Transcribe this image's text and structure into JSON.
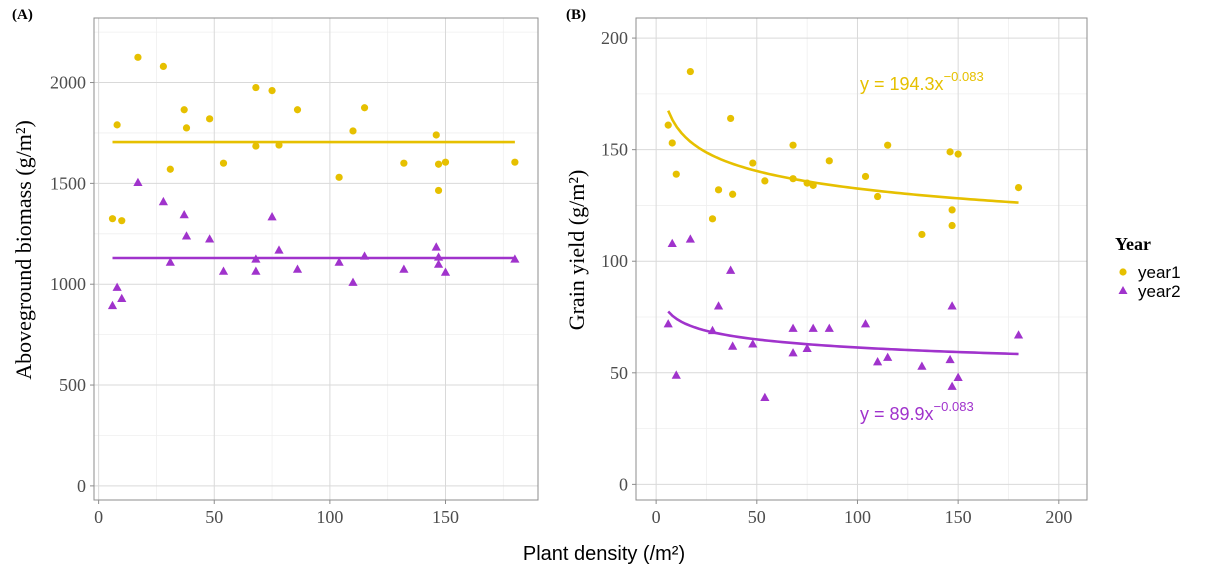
{
  "colors": {
    "year1": "#E6C000",
    "year2": "#A033CC",
    "grid_major": "#d9d9d9",
    "grid_minor": "#efefef",
    "axis_text": "#4d4d4d",
    "border": "#8c8c8c"
  },
  "legend": {
    "title": "Year",
    "entries": [
      "year1",
      "year2"
    ]
  },
  "shared_xlabel": "Plant density (/m²)",
  "chart_data": [
    {
      "panel_label": "(A)",
      "type": "scatter",
      "xlabel": "",
      "ylabel": "Aboveground biomass (g/m²)",
      "xlim": [
        -2,
        190
      ],
      "ylim": [
        -70,
        2320
      ],
      "xticks": [
        0,
        50,
        100,
        150
      ],
      "yticks": [
        0,
        500,
        1000,
        1500,
        2000
      ],
      "grid": true,
      "series": [
        {
          "name": "year1",
          "marker": "circle",
          "points": [
            [
              6,
              1325
            ],
            [
              8,
              1790
            ],
            [
              10,
              1315
            ],
            [
              17,
              2125
            ],
            [
              28,
              2080
            ],
            [
              31,
              1570
            ],
            [
              37,
              1865
            ],
            [
              38,
              1775
            ],
            [
              48,
              1820
            ],
            [
              54,
              1600
            ],
            [
              68,
              1975
            ],
            [
              68,
              1685
            ],
            [
              75,
              1960
            ],
            [
              78,
              1690
            ],
            [
              86,
              1865
            ],
            [
              104,
              1530
            ],
            [
              110,
              1760
            ],
            [
              115,
              1875
            ],
            [
              132,
              1600
            ],
            [
              146,
              1740
            ],
            [
              147,
              1595
            ],
            [
              147,
              1465
            ],
            [
              150,
              1605
            ],
            [
              180,
              1605
            ]
          ],
          "fit": {
            "kind": "constant",
            "value": 1705,
            "x_range": [
              6,
              180
            ]
          }
        },
        {
          "name": "year2",
          "marker": "triangle",
          "points": [
            [
              6,
              895
            ],
            [
              8,
              985
            ],
            [
              10,
              930
            ],
            [
              17,
              1505
            ],
            [
              28,
              1410
            ],
            [
              31,
              1110
            ],
            [
              37,
              1345
            ],
            [
              38,
              1240
            ],
            [
              48,
              1225
            ],
            [
              54,
              1065
            ],
            [
              68,
              1125
            ],
            [
              68,
              1065
            ],
            [
              75,
              1335
            ],
            [
              78,
              1170
            ],
            [
              86,
              1075
            ],
            [
              104,
              1110
            ],
            [
              110,
              1010
            ],
            [
              115,
              1140
            ],
            [
              132,
              1075
            ],
            [
              146,
              1185
            ],
            [
              147,
              1135
            ],
            [
              147,
              1100
            ],
            [
              150,
              1060
            ],
            [
              180,
              1125
            ]
          ],
          "fit": {
            "kind": "constant",
            "value": 1130,
            "x_range": [
              6,
              180
            ]
          }
        }
      ]
    },
    {
      "panel_label": "(B)",
      "type": "scatter",
      "xlabel": "",
      "ylabel": "Grain yield (g/m²)",
      "xlim": [
        -10,
        214
      ],
      "ylim": [
        -7,
        209
      ],
      "xticks": [
        0,
        50,
        100,
        150,
        200
      ],
      "yticks": [
        0,
        50,
        100,
        150,
        200
      ],
      "grid": true,
      "series": [
        {
          "name": "year1",
          "marker": "circle",
          "points": [
            [
              6,
              161
            ],
            [
              8,
              153
            ],
            [
              10,
              139
            ],
            [
              17,
              185
            ],
            [
              28,
              119
            ],
            [
              31,
              132
            ],
            [
              37,
              164
            ],
            [
              38,
              130
            ],
            [
              48,
              144
            ],
            [
              54,
              136
            ],
            [
              68,
              152
            ],
            [
              68,
              137
            ],
            [
              75,
              135
            ],
            [
              78,
              134
            ],
            [
              86,
              145
            ],
            [
              104,
              138
            ],
            [
              110,
              129
            ],
            [
              115,
              152
            ],
            [
              132,
              112
            ],
            [
              146,
              149
            ],
            [
              147,
              123
            ],
            [
              147,
              116
            ],
            [
              150,
              148
            ],
            [
              180,
              133
            ]
          ],
          "fit": {
            "kind": "power",
            "a": 194.3,
            "b": -0.083,
            "x_range": [
              6,
              180
            ]
          },
          "equation_base": "y = 194.3x",
          "equation_exp": "−0.083"
        },
        {
          "name": "year2",
          "marker": "triangle",
          "points": [
            [
              6,
              72
            ],
            [
              8,
              108
            ],
            [
              10,
              49
            ],
            [
              17,
              110
            ],
            [
              28,
              69
            ],
            [
              31,
              80
            ],
            [
              37,
              96
            ],
            [
              38,
              62
            ],
            [
              48,
              63
            ],
            [
              54,
              39
            ],
            [
              68,
              70
            ],
            [
              68,
              59
            ],
            [
              75,
              61
            ],
            [
              78,
              70
            ],
            [
              86,
              70
            ],
            [
              104,
              72
            ],
            [
              110,
              55
            ],
            [
              115,
              57
            ],
            [
              132,
              53
            ],
            [
              146,
              56
            ],
            [
              147,
              80
            ],
            [
              147,
              44
            ],
            [
              150,
              48
            ],
            [
              180,
              67
            ]
          ],
          "fit": {
            "kind": "power",
            "a": 89.9,
            "b": -0.083,
            "x_range": [
              6,
              180
            ]
          },
          "equation_base": "y = 89.9x",
          "equation_exp": "−0.083"
        }
      ]
    }
  ]
}
